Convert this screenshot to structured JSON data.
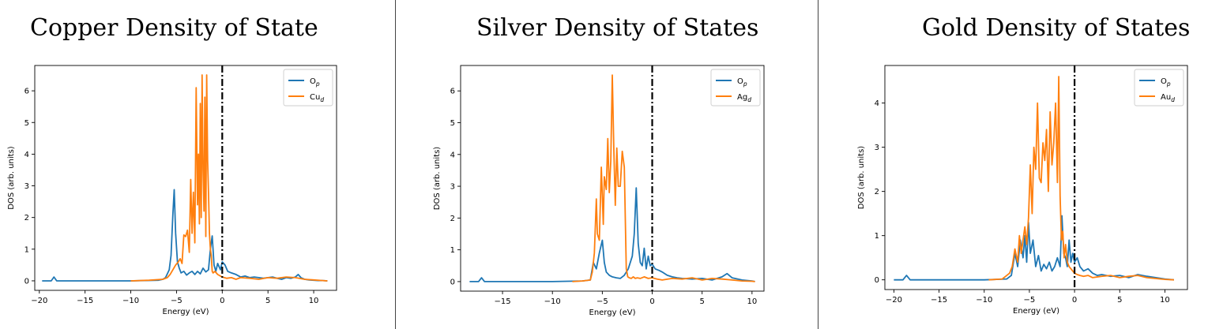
{
  "chart_data": [
    {
      "type": "line",
      "title": "Copper Density of State",
      "xlabel": "Energy (eV)",
      "ylabel": "DOS (arb. units)",
      "xlim": [
        -20.5,
        12.5
      ],
      "ylim": [
        -0.3,
        6.8
      ],
      "xticks": [
        -20,
        -15,
        -10,
        -5,
        0,
        5,
        10
      ],
      "yticks": [
        0,
        1,
        2,
        3,
        4,
        5,
        6
      ],
      "fermi_level": 0,
      "legend_position": "top-right",
      "series": [
        {
          "name": "O",
          "sub": "p",
          "color": "#1f77b4",
          "x": [
            -19.7,
            -18.7,
            -18.4,
            -18.1,
            -15,
            -10,
            -7,
            -6.5,
            -6.2,
            -6.0,
            -5.8,
            -5.6,
            -5.4,
            -5.25,
            -5.1,
            -4.9,
            -4.7,
            -4.5,
            -4.2,
            -3.9,
            -3.6,
            -3.3,
            -3.0,
            -2.7,
            -2.4,
            -2.1,
            -1.8,
            -1.5,
            -1.3,
            -1.1,
            -0.9,
            -0.7,
            -0.5,
            -0.2,
            0,
            0.3,
            0.6,
            1,
            1.5,
            2,
            2.5,
            3,
            3.5,
            4,
            4.5,
            5,
            5.5,
            6,
            6.5,
            7,
            7.5,
            8,
            8.3,
            8.6,
            9,
            9.5,
            10,
            10.5,
            11,
            11.5
          ],
          "y": [
            0.0,
            0.0,
            0.12,
            0.0,
            0.0,
            0.0,
            0.02,
            0.05,
            0.1,
            0.22,
            0.35,
            0.8,
            2.1,
            2.88,
            1.5,
            0.6,
            0.4,
            0.25,
            0.3,
            0.18,
            0.25,
            0.3,
            0.2,
            0.3,
            0.22,
            0.4,
            0.28,
            0.35,
            1.0,
            1.42,
            0.5,
            0.3,
            0.55,
            0.35,
            0.6,
            0.5,
            0.3,
            0.25,
            0.2,
            0.12,
            0.15,
            0.1,
            0.12,
            0.1,
            0.08,
            0.1,
            0.12,
            0.08,
            0.05,
            0.1,
            0.08,
            0.12,
            0.2,
            0.1,
            0.05,
            0.03,
            0.02,
            0.01,
            0.01,
            0.0
          ]
        },
        {
          "name": "Cu",
          "sub": "d",
          "color": "#ff7f0e",
          "x": [
            -10,
            -8,
            -6.5,
            -6.0,
            -5.7,
            -5.4,
            -5.1,
            -4.8,
            -4.6,
            -4.4,
            -4.2,
            -4.0,
            -3.8,
            -3.6,
            -3.45,
            -3.3,
            -3.15,
            -3.0,
            -2.85,
            -2.7,
            -2.6,
            -2.5,
            -2.4,
            -2.3,
            -2.2,
            -2.1,
            -2.0,
            -1.9,
            -1.8,
            -1.7,
            -1.6,
            -1.5,
            -1.4,
            -1.3,
            -1.2,
            -1.1,
            -1.0,
            -0.8,
            -0.5,
            -0.2,
            0,
            0.5,
            1,
            1.5,
            2,
            3,
            4,
            5,
            6,
            7,
            8,
            9,
            10,
            11,
            11.5
          ],
          "y": [
            0.0,
            0.02,
            0.05,
            0.1,
            0.2,
            0.35,
            0.5,
            0.6,
            0.7,
            0.55,
            1.45,
            1.4,
            1.6,
            0.9,
            3.2,
            1.5,
            2.8,
            1.2,
            6.1,
            2.4,
            4.0,
            1.8,
            5.6,
            2.0,
            6.5,
            3.5,
            2.2,
            5.8,
            1.4,
            6.5,
            3.8,
            2.8,
            1.5,
            1.0,
            0.8,
            0.3,
            0.25,
            0.3,
            0.2,
            0.15,
            0.12,
            0.08,
            0.1,
            0.05,
            0.1,
            0.08,
            0.05,
            0.1,
            0.08,
            0.12,
            0.1,
            0.05,
            0.03,
            0.01,
            0.0
          ]
        }
      ]
    },
    {
      "type": "line",
      "title": "Silver Density of States",
      "xlabel": "Energy (eV)",
      "ylabel": "DOS (arb. units)",
      "xlim": [
        -19.2,
        11.2
      ],
      "ylim": [
        -0.3,
        6.8
      ],
      "xticks": [
        -15,
        -10,
        -5,
        0,
        5,
        10
      ],
      "yticks": [
        0,
        1,
        2,
        3,
        4,
        5,
        6
      ],
      "fermi_level": 0,
      "legend_position": "top-right",
      "series": [
        {
          "name": "O",
          "sub": "p",
          "color": "#1f77b4",
          "x": [
            -18.3,
            -17.4,
            -17.1,
            -16.8,
            -15,
            -10,
            -7,
            -6.2,
            -5.9,
            -5.6,
            -5.3,
            -5.0,
            -4.8,
            -4.6,
            -4.3,
            -4.0,
            -3.6,
            -3.2,
            -2.8,
            -2.4,
            -2.0,
            -1.8,
            -1.6,
            -1.4,
            -1.2,
            -1.0,
            -0.8,
            -0.6,
            -0.4,
            -0.2,
            0,
            0.3,
            0.7,
            1,
            1.5,
            2,
            2.5,
            3,
            4,
            5,
            6,
            7,
            7.5,
            8,
            9,
            10,
            10.3
          ],
          "y": [
            0.0,
            0.0,
            0.12,
            0.0,
            0.0,
            0.0,
            0.02,
            0.05,
            0.6,
            0.4,
            0.9,
            1.3,
            0.6,
            0.3,
            0.2,
            0.15,
            0.12,
            0.1,
            0.2,
            0.4,
            0.8,
            1.5,
            2.95,
            1.2,
            0.6,
            0.5,
            1.05,
            0.4,
            0.8,
            0.5,
            0.55,
            0.4,
            0.35,
            0.3,
            0.2,
            0.15,
            0.12,
            0.1,
            0.08,
            0.1,
            0.05,
            0.15,
            0.25,
            0.12,
            0.05,
            0.02,
            0.0
          ]
        },
        {
          "name": "Ag",
          "sub": "d",
          "color": "#ff7f0e",
          "x": [
            -8,
            -7,
            -6.2,
            -6.0,
            -5.8,
            -5.6,
            -5.5,
            -5.3,
            -5.1,
            -4.9,
            -4.8,
            -4.6,
            -4.45,
            -4.3,
            -4.15,
            -4.0,
            -3.85,
            -3.7,
            -3.55,
            -3.4,
            -3.2,
            -3.0,
            -2.8,
            -2.6,
            -2.45,
            -2.3,
            -2.1,
            -1.9,
            -1.7,
            -1.5,
            -1.2,
            -0.8,
            -0.4,
            0,
            0.5,
            1,
            2,
            3,
            4,
            5,
            6,
            7,
            8,
            9,
            10,
            10.3
          ],
          "y": [
            0.0,
            0.02,
            0.05,
            0.3,
            0.9,
            2.6,
            1.5,
            1.3,
            3.6,
            1.8,
            3.3,
            2.9,
            4.5,
            2.8,
            3.8,
            6.5,
            4.2,
            2.4,
            4.2,
            3.0,
            3.0,
            4.1,
            3.6,
            0.4,
            0.15,
            0.12,
            0.1,
            0.15,
            0.1,
            0.12,
            0.1,
            0.15,
            0.1,
            0.12,
            0.08,
            0.05,
            0.1,
            0.08,
            0.12,
            0.05,
            0.1,
            0.08,
            0.05,
            0.02,
            0.01,
            0.0
          ]
        }
      ]
    },
    {
      "type": "line",
      "title": "Gold Density of States",
      "xlabel": "Energy (eV)",
      "ylabel": "DOS (arb. units)",
      "xlim": [
        -21,
        12.5
      ],
      "ylim": [
        -0.22,
        4.85
      ],
      "xticks": [
        -20,
        -15,
        -10,
        -5,
        0,
        5,
        10
      ],
      "yticks": [
        0,
        1,
        2,
        3,
        4
      ],
      "fermi_level": 0,
      "legend_position": "top-right",
      "series": [
        {
          "name": "O",
          "sub": "p",
          "color": "#1f77b4",
          "x": [
            -20,
            -19,
            -18.6,
            -18.2,
            -15,
            -10,
            -7.5,
            -7.0,
            -6.6,
            -6.3,
            -6.0,
            -5.7,
            -5.5,
            -5.3,
            -5.1,
            -4.9,
            -4.6,
            -4.3,
            -4.0,
            -3.7,
            -3.4,
            -3.1,
            -2.8,
            -2.5,
            -2.2,
            -1.9,
            -1.6,
            -1.4,
            -1.2,
            -1.0,
            -0.8,
            -0.6,
            -0.4,
            -0.2,
            0,
            0.3,
            0.6,
            1,
            1.5,
            2,
            2.5,
            3,
            3.5,
            4,
            5,
            6,
            7,
            8,
            9,
            10,
            11
          ],
          "y": [
            0.0,
            0.0,
            0.1,
            0.0,
            0.0,
            0.0,
            0.02,
            0.1,
            0.6,
            0.3,
            0.9,
            0.5,
            1.0,
            0.4,
            1.3,
            0.6,
            0.9,
            0.3,
            0.55,
            0.2,
            0.35,
            0.25,
            0.4,
            0.2,
            0.3,
            0.5,
            0.3,
            1.45,
            0.6,
            0.5,
            0.3,
            0.9,
            0.4,
            0.6,
            0.4,
            0.5,
            0.3,
            0.2,
            0.25,
            0.15,
            0.1,
            0.12,
            0.1,
            0.08,
            0.1,
            0.05,
            0.12,
            0.08,
            0.05,
            0.02,
            0.0
          ]
        },
        {
          "name": "Au",
          "sub": "d",
          "color": "#ff7f0e",
          "x": [
            -9.5,
            -8,
            -7.2,
            -6.9,
            -6.6,
            -6.3,
            -6.1,
            -5.9,
            -5.7,
            -5.5,
            -5.3,
            -5.1,
            -4.9,
            -4.7,
            -4.5,
            -4.3,
            -4.1,
            -3.9,
            -3.7,
            -3.5,
            -3.3,
            -3.1,
            -2.9,
            -2.7,
            -2.5,
            -2.3,
            -2.1,
            -1.9,
            -1.75,
            -1.6,
            -1.45,
            -1.3,
            -1.15,
            -1.0,
            -0.8,
            -0.6,
            -0.4,
            -0.2,
            0,
            0.3,
            0.6,
            1,
            1.5,
            2,
            3,
            4,
            5,
            6,
            7,
            8,
            9,
            10,
            11
          ],
          "y": [
            0.0,
            0.02,
            0.15,
            0.3,
            0.7,
            0.4,
            1.0,
            0.6,
            0.9,
            1.2,
            0.8,
            1.4,
            2.6,
            1.5,
            3.0,
            2.5,
            4.0,
            2.3,
            2.2,
            3.1,
            2.7,
            3.4,
            2.0,
            3.8,
            2.6,
            3.1,
            4.0,
            2.2,
            4.6,
            1.9,
            0.9,
            1.1,
            0.5,
            0.8,
            0.4,
            0.3,
            0.25,
            0.2,
            0.15,
            0.12,
            0.1,
            0.08,
            0.1,
            0.05,
            0.08,
            0.1,
            0.05,
            0.08,
            0.1,
            0.05,
            0.03,
            0.01,
            0.0
          ]
        }
      ]
    }
  ]
}
